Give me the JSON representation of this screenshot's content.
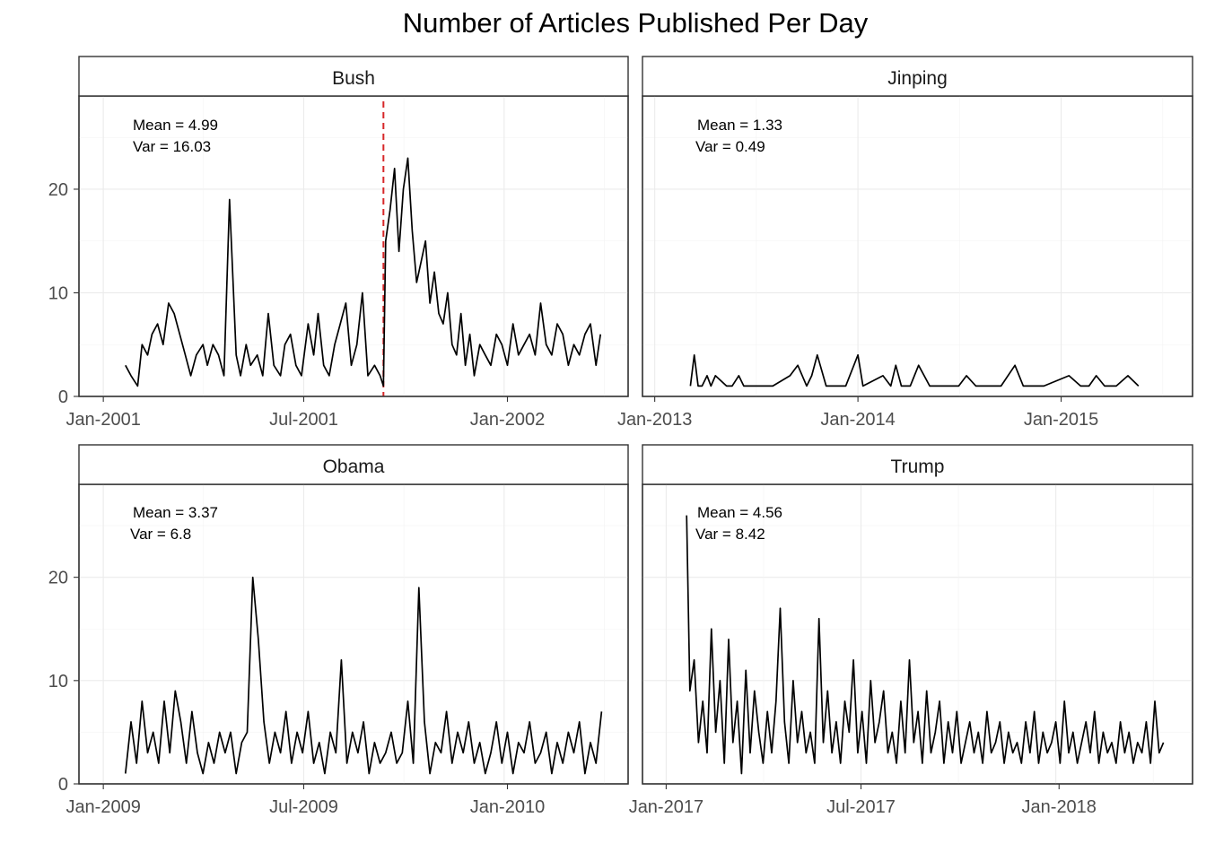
{
  "figure": {
    "title": "Number of Articles Published Per Day"
  },
  "chart_data": [
    {
      "type": "line",
      "panel": "Bush",
      "ylim": [
        0,
        29
      ],
      "y_ticks": [
        0,
        10,
        20
      ],
      "x_range": [
        "2000-12-10",
        "2002-04-20"
      ],
      "x_ticks": [
        {
          "date": "2001-01-01",
          "label": "Jan-2001"
        },
        {
          "date": "2001-07-01",
          "label": "Jul-2001"
        },
        {
          "date": "2002-01-01",
          "label": "Jan-2002"
        }
      ],
      "grid": true,
      "annotation": {
        "mean": "Mean = 4.99",
        "var": "Var = 16.03"
      },
      "reference_line": {
        "date": "2001-09-11",
        "color": "#d62728",
        "style": "dashed"
      },
      "x": [
        "2001-01-21",
        "2001-01-26",
        "2001-02-01",
        "2001-02-05",
        "2001-02-10",
        "2001-02-14",
        "2001-02-19",
        "2001-02-24",
        "2001-03-01",
        "2001-03-06",
        "2001-03-11",
        "2001-03-16",
        "2001-03-21",
        "2001-03-26",
        "2001-04-01",
        "2001-04-05",
        "2001-04-10",
        "2001-04-15",
        "2001-04-20",
        "2001-04-25",
        "2001-05-01",
        "2001-05-05",
        "2001-05-10",
        "2001-05-14",
        "2001-05-20",
        "2001-05-25",
        "2001-05-30",
        "2001-06-04",
        "2001-06-10",
        "2001-06-14",
        "2001-06-19",
        "2001-06-24",
        "2001-06-29",
        "2001-07-05",
        "2001-07-10",
        "2001-07-14",
        "2001-07-19",
        "2001-07-24",
        "2001-07-29",
        "2001-08-03",
        "2001-08-08",
        "2001-08-13",
        "2001-08-18",
        "2001-08-23",
        "2001-08-28",
        "2001-09-03",
        "2001-09-08",
        "2001-09-11",
        "2001-09-13",
        "2001-09-17",
        "2001-09-21",
        "2001-09-25",
        "2001-09-29",
        "2001-10-03",
        "2001-10-07",
        "2001-10-11",
        "2001-10-15",
        "2001-10-19",
        "2001-10-23",
        "2001-10-27",
        "2001-10-31",
        "2001-11-04",
        "2001-11-08",
        "2001-11-12",
        "2001-11-16",
        "2001-11-20",
        "2001-11-24",
        "2001-11-28",
        "2001-12-02",
        "2001-12-07",
        "2001-12-12",
        "2001-12-17",
        "2001-12-22",
        "2001-12-27",
        "2002-01-01",
        "2002-01-06",
        "2002-01-11",
        "2002-01-16",
        "2002-01-21",
        "2002-01-26",
        "2002-01-31",
        "2002-02-05",
        "2002-02-10",
        "2002-02-15",
        "2002-02-20",
        "2002-02-25",
        "2002-03-02",
        "2002-03-07",
        "2002-03-12",
        "2002-03-17",
        "2002-03-22",
        "2002-03-26"
      ],
      "y": [
        3,
        2,
        1,
        5,
        4,
        6,
        7,
        5,
        9,
        8,
        6,
        4,
        2,
        4,
        5,
        3,
        5,
        4,
        2,
        19,
        4,
        2,
        5,
        3,
        4,
        2,
        8,
        3,
        2,
        5,
        6,
        3,
        2,
        7,
        4,
        8,
        3,
        2,
        5,
        7,
        9,
        3,
        5,
        10,
        2,
        3,
        2,
        1,
        15,
        18,
        22,
        14,
        20,
        23,
        16,
        11,
        13,
        15,
        9,
        12,
        8,
        7,
        10,
        5,
        4,
        8,
        3,
        6,
        2,
        5,
        4,
        3,
        6,
        5,
        3,
        7,
        4,
        5,
        6,
        4,
        9,
        5,
        4,
        7,
        6,
        3,
        5,
        4,
        6,
        7,
        3,
        6
      ]
    },
    {
      "type": "line",
      "panel": "Jinping",
      "ylim": [
        0,
        29
      ],
      "y_ticks": [
        0,
        10,
        20
      ],
      "x_range": [
        "2012-12-10",
        "2015-08-25"
      ],
      "x_ticks": [
        {
          "date": "2013-01-01",
          "label": "Jan-2013"
        },
        {
          "date": "2014-01-01",
          "label": "Jan-2014"
        },
        {
          "date": "2015-01-01",
          "label": "Jan-2015"
        }
      ],
      "grid": true,
      "annotation": {
        "mean": "Mean = 1.33",
        "var": "Var = 0.49"
      },
      "x": [
        "2013-03-06",
        "2013-03-13",
        "2013-03-20",
        "2013-03-27",
        "2013-04-05",
        "2013-04-12",
        "2013-04-20",
        "2013-05-10",
        "2013-05-20",
        "2013-06-01",
        "2013-06-10",
        "2013-06-18",
        "2013-07-05",
        "2013-08-01",
        "2013-09-01",
        "2013-09-15",
        "2013-10-01",
        "2013-10-10",
        "2013-10-20",
        "2013-11-05",
        "2013-11-20",
        "2013-12-10",
        "2014-01-01",
        "2014-01-10",
        "2014-02-15",
        "2014-03-01",
        "2014-03-10",
        "2014-03-20",
        "2014-04-05",
        "2014-04-20",
        "2014-05-10",
        "2014-06-01",
        "2014-07-01",
        "2014-07-15",
        "2014-08-01",
        "2014-08-20",
        "2014-09-15",
        "2014-10-10",
        "2014-10-25",
        "2014-12-01",
        "2015-01-15",
        "2015-02-05",
        "2015-02-20",
        "2015-03-05",
        "2015-03-20",
        "2015-04-10",
        "2015-05-01",
        "2015-05-20"
      ],
      "y": [
        1,
        4,
        1,
        1,
        2,
        1,
        2,
        1,
        1,
        2,
        1,
        1,
        1,
        1,
        2,
        3,
        1,
        2,
        4,
        1,
        1,
        1,
        4,
        1,
        2,
        1,
        3,
        1,
        1,
        3,
        1,
        1,
        1,
        2,
        1,
        1,
        1,
        3,
        1,
        1,
        2,
        1,
        1,
        2,
        1,
        1,
        2,
        1
      ]
    },
    {
      "type": "line",
      "panel": "Obama",
      "ylim": [
        0,
        29
      ],
      "y_ticks": [
        0,
        10,
        20
      ],
      "x_range": [
        "2008-12-10",
        "2010-04-20"
      ],
      "x_ticks": [
        {
          "date": "2009-01-01",
          "label": "Jan-2009"
        },
        {
          "date": "2009-07-01",
          "label": "Jul-2009"
        },
        {
          "date": "2010-01-01",
          "label": "Jan-2010"
        }
      ],
      "grid": true,
      "annotation": {
        "mean": "Mean = 3.37",
        "var": "Var = 6.8"
      },
      "x": [
        "2009-01-21",
        "2009-01-26",
        "2009-01-31",
        "2009-02-05",
        "2009-02-10",
        "2009-02-15",
        "2009-02-20",
        "2009-02-25",
        "2009-03-02",
        "2009-03-07",
        "2009-03-12",
        "2009-03-17",
        "2009-03-22",
        "2009-03-27",
        "2009-04-01",
        "2009-04-06",
        "2009-04-11",
        "2009-04-16",
        "2009-04-21",
        "2009-04-26",
        "2009-05-01",
        "2009-05-06",
        "2009-05-11",
        "2009-05-16",
        "2009-05-21",
        "2009-05-26",
        "2009-05-31",
        "2009-06-05",
        "2009-06-10",
        "2009-06-15",
        "2009-06-20",
        "2009-06-25",
        "2009-06-30",
        "2009-07-05",
        "2009-07-10",
        "2009-07-15",
        "2009-07-20",
        "2009-07-25",
        "2009-07-30",
        "2009-08-04",
        "2009-08-09",
        "2009-08-14",
        "2009-08-19",
        "2009-08-24",
        "2009-08-29",
        "2009-09-03",
        "2009-09-08",
        "2009-09-13",
        "2009-09-18",
        "2009-09-23",
        "2009-09-28",
        "2009-10-03",
        "2009-10-08",
        "2009-10-13",
        "2009-10-18",
        "2009-10-23",
        "2009-10-28",
        "2009-11-02",
        "2009-11-07",
        "2009-11-12",
        "2009-11-17",
        "2009-11-22",
        "2009-11-27",
        "2009-12-02",
        "2009-12-07",
        "2009-12-12",
        "2009-12-17",
        "2009-12-22",
        "2009-12-27",
        "2010-01-01",
        "2010-01-06",
        "2010-01-11",
        "2010-01-16",
        "2010-01-21",
        "2010-01-26",
        "2010-01-31",
        "2010-02-05",
        "2010-02-10",
        "2010-02-15",
        "2010-02-20",
        "2010-02-25",
        "2010-03-02",
        "2010-03-07",
        "2010-03-12",
        "2010-03-17",
        "2010-03-22",
        "2010-03-27"
      ],
      "y": [
        1,
        6,
        2,
        8,
        3,
        5,
        2,
        8,
        3,
        9,
        6,
        2,
        7,
        3,
        1,
        4,
        2,
        5,
        3,
        5,
        1,
        4,
        5,
        20,
        14,
        6,
        2,
        5,
        3,
        7,
        2,
        5,
        3,
        7,
        2,
        4,
        1,
        5,
        3,
        12,
        2,
        5,
        3,
        6,
        1,
        4,
        2,
        3,
        5,
        2,
        3,
        8,
        2,
        19,
        6,
        1,
        4,
        3,
        7,
        2,
        5,
        3,
        6,
        2,
        4,
        1,
        3,
        6,
        2,
        5,
        1,
        4,
        3,
        6,
        2,
        3,
        5,
        1,
        4,
        2,
        5,
        3,
        6,
        1,
        4,
        2,
        7
      ]
    },
    {
      "type": "line",
      "panel": "Trump",
      "ylim": [
        0,
        29
      ],
      "y_ticks": [
        0,
        10,
        20
      ],
      "x_range": [
        "2016-12-10",
        "2018-05-05"
      ],
      "x_ticks": [
        {
          "date": "2017-01-01",
          "label": "Jan-2017"
        },
        {
          "date": "2017-07-01",
          "label": "Jul-2017"
        },
        {
          "date": "2018-01-01",
          "label": "Jan-2018"
        }
      ],
      "grid": true,
      "annotation": {
        "mean": "Mean = 4.56",
        "var": "Var = 8.42"
      },
      "x": [
        "2017-01-20",
        "2017-01-23",
        "2017-01-27",
        "2017-01-31",
        "2017-02-04",
        "2017-02-08",
        "2017-02-12",
        "2017-02-16",
        "2017-02-20",
        "2017-02-24",
        "2017-02-28",
        "2017-03-04",
        "2017-03-08",
        "2017-03-12",
        "2017-03-16",
        "2017-03-20",
        "2017-03-24",
        "2017-03-28",
        "2017-04-01",
        "2017-04-05",
        "2017-04-09",
        "2017-04-13",
        "2017-04-17",
        "2017-04-21",
        "2017-04-25",
        "2017-04-29",
        "2017-05-03",
        "2017-05-07",
        "2017-05-11",
        "2017-05-15",
        "2017-05-19",
        "2017-05-23",
        "2017-05-27",
        "2017-05-31",
        "2017-06-04",
        "2017-06-08",
        "2017-06-12",
        "2017-06-16",
        "2017-06-20",
        "2017-06-24",
        "2017-06-28",
        "2017-07-02",
        "2017-07-06",
        "2017-07-10",
        "2017-07-14",
        "2017-07-18",
        "2017-07-22",
        "2017-07-26",
        "2017-07-30",
        "2017-08-03",
        "2017-08-07",
        "2017-08-11",
        "2017-08-15",
        "2017-08-19",
        "2017-08-23",
        "2017-08-27",
        "2017-08-31",
        "2017-09-04",
        "2017-09-08",
        "2017-09-12",
        "2017-09-16",
        "2017-09-20",
        "2017-09-24",
        "2017-09-28",
        "2017-10-02",
        "2017-10-06",
        "2017-10-10",
        "2017-10-14",
        "2017-10-18",
        "2017-10-22",
        "2017-10-26",
        "2017-10-30",
        "2017-11-03",
        "2017-11-07",
        "2017-11-11",
        "2017-11-15",
        "2017-11-19",
        "2017-11-23",
        "2017-11-27",
        "2017-12-01",
        "2017-12-05",
        "2017-12-09",
        "2017-12-13",
        "2017-12-17",
        "2017-12-21",
        "2017-12-25",
        "2017-12-29",
        "2018-01-02",
        "2018-01-06",
        "2018-01-10",
        "2018-01-14",
        "2018-01-18",
        "2018-01-22",
        "2018-01-26",
        "2018-01-30",
        "2018-02-03",
        "2018-02-07",
        "2018-02-11",
        "2018-02-15",
        "2018-02-19",
        "2018-02-23",
        "2018-02-27",
        "2018-03-03",
        "2018-03-07",
        "2018-03-11",
        "2018-03-15",
        "2018-03-19",
        "2018-03-23",
        "2018-03-27",
        "2018-03-31",
        "2018-04-04",
        "2018-04-08"
      ],
      "y": [
        26,
        9,
        12,
        4,
        8,
        3,
        15,
        5,
        10,
        2,
        14,
        4,
        8,
        1,
        11,
        3,
        9,
        5,
        2,
        7,
        3,
        8,
        17,
        6,
        2,
        10,
        4,
        7,
        3,
        5,
        2,
        16,
        4,
        9,
        3,
        6,
        2,
        8,
        5,
        12,
        3,
        7,
        2,
        10,
        4,
        6,
        9,
        3,
        5,
        2,
        8,
        3,
        12,
        4,
        7,
        2,
        9,
        3,
        5,
        8,
        2,
        6,
        3,
        7,
        2,
        4,
        6,
        3,
        5,
        2,
        7,
        3,
        4,
        6,
        2,
        5,
        3,
        4,
        2,
        6,
        3,
        7,
        2,
        5,
        3,
        4,
        6,
        2,
        8,
        3,
        5,
        2,
        4,
        6,
        3,
        7,
        2,
        5,
        3,
        4,
        2,
        6,
        3,
        5,
        2,
        4,
        3,
        6,
        2,
        8,
        3,
        4
      ]
    }
  ]
}
